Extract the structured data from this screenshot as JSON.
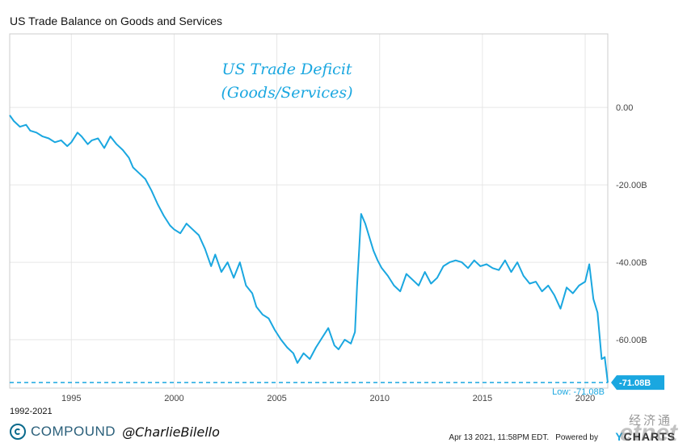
{
  "header": {
    "title": "US Trade Balance on Goods and Services"
  },
  "annotation": {
    "line1": "US Trade Deficit",
    "line2": "(Goods/Services)"
  },
  "footer": {
    "range": "1992-2021",
    "brand_name": "COMPOUND",
    "brand_handle": "@CharlieBilello",
    "timestamp": "Apr 13 2021, 11:58PM EDT.",
    "powered_by": "Powered by",
    "ycharts_y": "Y",
    "ycharts_rest": "CHARTS",
    "watermark_cn": "经济通",
    "watermark_en": "etnet"
  },
  "colors": {
    "series": "#1aa7e0",
    "grid": "#e6e6e6",
    "axis": "#cccccc"
  },
  "chart_data": {
    "type": "line",
    "title": "US Trade Balance on Goods and Services",
    "xlabel": "",
    "ylabel": "",
    "xlim": [
      1992.0,
      2021.1
    ],
    "ylim": [
      -72.5,
      19
    ],
    "x_ticks": [
      1995,
      2000,
      2005,
      2010,
      2015,
      2020
    ],
    "x_tick_labels": [
      "1995",
      "2000",
      "2005",
      "2010",
      "2015",
      "2020"
    ],
    "y_ticks": [
      0,
      -20,
      -40,
      -60
    ],
    "y_tick_labels": [
      "0.00",
      "-20.00B",
      "-40.00B",
      "-60.00B"
    ],
    "grid": true,
    "unit": "B",
    "series": [
      {
        "x": [
          1992.0,
          1992.2,
          1992.5,
          1992.8,
          1993.0,
          1993.3,
          1993.6,
          1993.9,
          1994.2,
          1994.5,
          1994.8,
          1995.0,
          1995.3,
          1995.5,
          1995.8,
          1996.0,
          1996.3,
          1996.6,
          1996.9,
          1997.2,
          1997.5,
          1997.8,
          1998.0,
          1998.3,
          1998.6,
          1998.9,
          1999.2,
          1999.5,
          1999.8,
          2000.0,
          2000.3,
          2000.6,
          2000.9,
          2001.2,
          2001.5,
          2001.8,
          2002.0,
          2002.3,
          2002.6,
          2002.9,
          2003.2,
          2003.5,
          2003.8,
          2004.0,
          2004.3,
          2004.6,
          2004.9,
          2005.2,
          2005.5,
          2005.8,
          2006.0,
          2006.3,
          2006.6,
          2006.9,
          2007.2,
          2007.5,
          2007.8,
          2008.0,
          2008.3,
          2008.6,
          2008.8,
          2008.9,
          2009.0,
          2009.1,
          2009.3,
          2009.5,
          2009.7,
          2009.9,
          2010.1,
          2010.4,
          2010.7,
          2011.0,
          2011.3,
          2011.6,
          2011.9,
          2012.2,
          2012.5,
          2012.8,
          2013.1,
          2013.4,
          2013.7,
          2014.0,
          2014.3,
          2014.6,
          2014.9,
          2015.2,
          2015.5,
          2015.8,
          2016.1,
          2016.4,
          2016.7,
          2017.0,
          2017.3,
          2017.6,
          2017.9,
          2018.2,
          2018.5,
          2018.8,
          2019.1,
          2019.4,
          2019.7,
          2020.0,
          2020.2,
          2020.4,
          2020.6,
          2020.8,
          2020.95,
          2021.1
        ],
        "values": [
          -2.0,
          -3.5,
          -5.0,
          -4.5,
          -6.0,
          -6.5,
          -7.5,
          -8.0,
          -9.0,
          -8.5,
          -10.0,
          -9.0,
          -6.5,
          -7.5,
          -9.5,
          -8.5,
          -8.0,
          -10.5,
          -7.5,
          -9.5,
          -11.0,
          -13.0,
          -15.5,
          -17.0,
          -18.5,
          -21.5,
          -25.0,
          -28.0,
          -30.5,
          -31.5,
          -32.5,
          -30.0,
          -31.5,
          -33.0,
          -36.5,
          -41.0,
          -38.0,
          -42.5,
          -40.0,
          -44.0,
          -40.0,
          -46.0,
          -48.0,
          -51.5,
          -53.5,
          -54.5,
          -57.5,
          -60.0,
          -62.0,
          -63.5,
          -66.0,
          -63.5,
          -65.0,
          -62.0,
          -59.5,
          -57.0,
          -61.5,
          -62.5,
          -60.0,
          -61.0,
          -58.0,
          -46.0,
          -37.0,
          -27.5,
          -30.0,
          -33.5,
          -37.0,
          -39.5,
          -41.5,
          -43.5,
          -46.0,
          -47.5,
          -43.0,
          -44.5,
          -46.0,
          -42.5,
          -45.5,
          -44.0,
          -41.0,
          -40.0,
          -39.5,
          -40.0,
          -41.5,
          -39.5,
          -41.0,
          -40.5,
          -41.5,
          -42.0,
          -39.5,
          -42.5,
          -40.0,
          -43.5,
          -45.5,
          -45.0,
          -47.5,
          -46.0,
          -48.5,
          -52.0,
          -46.5,
          -48.0,
          -46.0,
          -45.0,
          -40.5,
          -49.5,
          -53.0,
          -65.0,
          -64.5,
          -71.08
        ]
      }
    ],
    "last_value_label": "-71.08B",
    "low_label": "Low: -71.08B"
  }
}
